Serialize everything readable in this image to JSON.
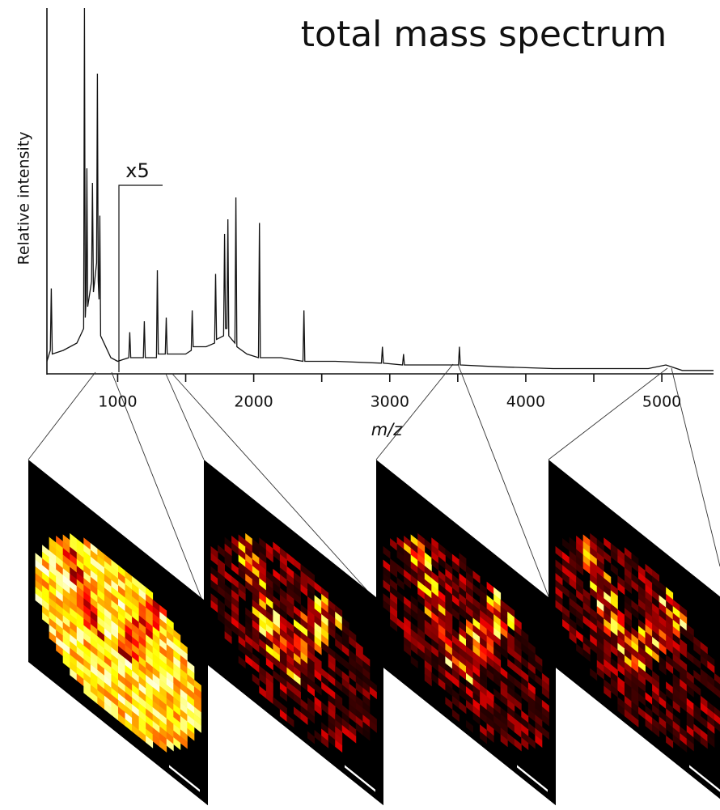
{
  "chart_data": {
    "type": "line",
    "title": "total mass spectrum",
    "x_label": "m/z",
    "y_label": "Relative intensity",
    "annotation": "x5",
    "color": "#111111",
    "xlim": [
      480,
      5380
    ],
    "ylim": [
      0,
      100
    ],
    "xticks": [
      1000,
      2000,
      3000,
      4000,
      5000
    ],
    "xminorticks": [
      1500,
      2500,
      3500,
      4500
    ],
    "x": [
      480,
      505,
      512,
      519,
      600,
      700,
      750,
      756,
      762,
      768,
      774,
      780,
      808,
      815,
      822,
      845,
      851,
      857,
      863,
      869,
      875,
      950,
      1000,
      1082,
      1089,
      1096,
      1189,
      1196,
      1203,
      1285,
      1292,
      1299,
      1350,
      1357,
      1364,
      1500,
      1541,
      1548,
      1555,
      1650,
      1713,
      1720,
      1727,
      1779,
      1786,
      1793,
      1803,
      1810,
      1817,
      1862,
      1869,
      1876,
      1950,
      2035,
      2042,
      2049,
      2200,
      2362,
      2369,
      2376,
      2600,
      2939,
      2946,
      2953,
      3094,
      3101,
      3108,
      3300,
      3505,
      3512,
      3519,
      3800,
      4200,
      4600,
      4900,
      5030,
      5150,
      5380
    ],
    "values": [
      3,
      6,
      23,
      5,
      6,
      8,
      12,
      100,
      15,
      20,
      56,
      18,
      25,
      52,
      22,
      30,
      82,
      25,
      20,
      43,
      10,
      4,
      3,
      4,
      11,
      4,
      4,
      14,
      4,
      4,
      28,
      5,
      5,
      15,
      5,
      5,
      6,
      17,
      7,
      7,
      8,
      27,
      9,
      10,
      38,
      12,
      12,
      42,
      10,
      8,
      48,
      7,
      5,
      4,
      41,
      4,
      4,
      3,
      17,
      3,
      3,
      2.5,
      7,
      2.5,
      2,
      5,
      2,
      2,
      2,
      7,
      2,
      1.5,
      1,
      1,
      1,
      2,
      0.5,
      0.5
    ]
  }
}
